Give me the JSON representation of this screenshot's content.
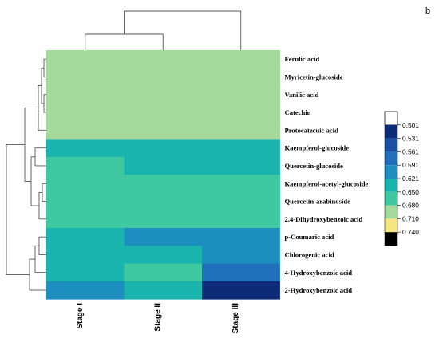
{
  "panel_label": "b",
  "chart_data": {
    "type": "heatmap",
    "title": "",
    "xlabel": "",
    "ylabel": "",
    "columns": [
      "Stage I",
      "Stage II",
      "Stage III"
    ],
    "rows": [
      "Ferulic acid",
      "Myricetin-glucoside",
      "Vanilic acid",
      "Catechin",
      "Protocatecuic acid",
      "Kaempferol-glucoside",
      "Quercetin-glucoside",
      "Kaempferol-acetyl-glucoside",
      "Quercetin-arabinoside",
      "2,4-Dihydroxybenzoic acid",
      "p-Coumaric acid",
      "Chlorogenic acid",
      "4-Hydroxybenzoic acid",
      "2-Hydroxybenzoic acid"
    ],
    "values": [
      [
        0.71,
        0.71,
        0.71
      ],
      [
        0.71,
        0.71,
        0.71
      ],
      [
        0.71,
        0.71,
        0.71
      ],
      [
        0.71,
        0.71,
        0.71
      ],
      [
        0.71,
        0.71,
        0.71
      ],
      [
        0.65,
        0.63,
        0.65
      ],
      [
        0.68,
        0.65,
        0.65
      ],
      [
        0.68,
        0.68,
        0.68
      ],
      [
        0.68,
        0.68,
        0.68
      ],
      [
        0.68,
        0.68,
        0.68
      ],
      [
        0.63,
        0.61,
        0.61
      ],
      [
        0.65,
        0.65,
        0.61
      ],
      [
        0.65,
        0.68,
        0.58
      ],
      [
        0.61,
        0.65,
        0.53
      ]
    ],
    "colorbar": {
      "ticks": [
        "0.501",
        "0.531",
        "0.561",
        "0.591",
        "0.621",
        "0.650",
        "0.680",
        "0.710",
        "0.740"
      ],
      "colors": [
        "#ffffff",
        "#0d2b78",
        "#1950a2",
        "#1f6fba",
        "#1c8fc0",
        "#19b4ae",
        "#3ec9a1",
        "#a4d99c",
        "#f7e583",
        "#000000"
      ]
    },
    "dendrogram": {
      "columns": "top",
      "rows": "left"
    },
    "grid": false,
    "legend": "right"
  }
}
